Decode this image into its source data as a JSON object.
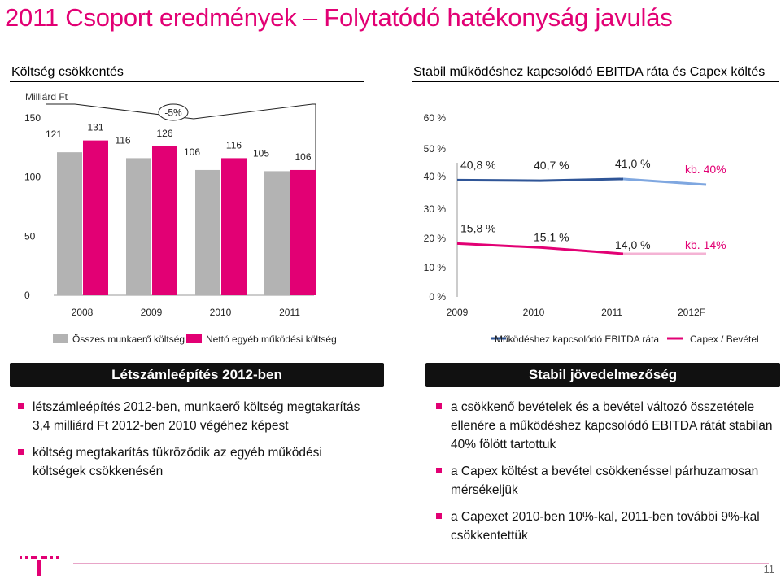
{
  "page": {
    "title": "2011 Csoport eredmények – Folytatódó hatékonyság javulás",
    "page_number": "11"
  },
  "colors": {
    "magenta": "#e20074",
    "gray": "#b3b3b3",
    "navy": "#2f5597",
    "pink": "#f4b3d4"
  },
  "left_section": {
    "title": "Költség csökkentés"
  },
  "right_section": {
    "title": "Stabil működéshez kapcsolódó EBITDA ráta és Capex költés"
  },
  "chart_data": [
    {
      "type": "bar",
      "ylabel": "Milliárd Ft",
      "ylim": [
        0,
        150
      ],
      "yticks": [
        "150",
        "100",
        "50",
        "0"
      ],
      "categories": [
        "2008",
        "2009",
        "2010",
        "2011"
      ],
      "series": [
        {
          "name": "Összes munkaerő költség",
          "color": "#b3b3b3",
          "values": [
            121,
            116,
            106,
            105
          ]
        },
        {
          "name": "Nettó egyéb működési költség",
          "color": "#e20074",
          "values": [
            131,
            126,
            116,
            106
          ]
        }
      ],
      "annotation": "-5%",
      "legend": "bottom"
    },
    {
      "type": "line",
      "yticks": [
        "60 %",
        "50 %",
        "40 %",
        "30 %",
        "20 %",
        "10 %",
        "0 %"
      ],
      "categories": [
        "2009",
        "2010",
        "2011",
        "2012F"
      ],
      "series": [
        {
          "name": "Működéshez kapcsolódó EBITDA ráta",
          "color": "#2f5597",
          "values": [
            40.8,
            40.7,
            41.0,
            40
          ],
          "labels": [
            "40,8 %",
            "40,7 %",
            "41,0 %",
            "kb. 40%"
          ]
        },
        {
          "name": "Capex / Bevétel",
          "color": "#e20074",
          "values": [
            15.8,
            15.1,
            14.0,
            14
          ],
          "labels": [
            "15,8 %",
            "15,1 %",
            "14,0 %",
            "kb. 14%"
          ]
        }
      ],
      "legend": "bottom"
    }
  ],
  "box_left": {
    "header": "Létszámleépítés 2012-ben",
    "bullets": [
      "létszámleépítés 2012-ben, munkaerő költség megtakarítás 3,4 milliárd Ft 2012-ben 2010 végéhez képest",
      "költség megtakarítás tükröződik az egyéb működési költségek csökkenésén"
    ]
  },
  "box_right": {
    "header": "Stabil jövedelmezőség",
    "bullets": [
      "a csökkenő bevételek és a bevétel változó összetétele ellenére a működéshez kapcsolódó EBITDA rátát stabilan 40% fölött tartottuk",
      "a Capex költést a bevétel csökkenéssel párhuzamosan mérsékeljük",
      "a Capexet 2010-ben 10%-kal, 2011-ben további 9%-kal csökkentettük"
    ]
  }
}
